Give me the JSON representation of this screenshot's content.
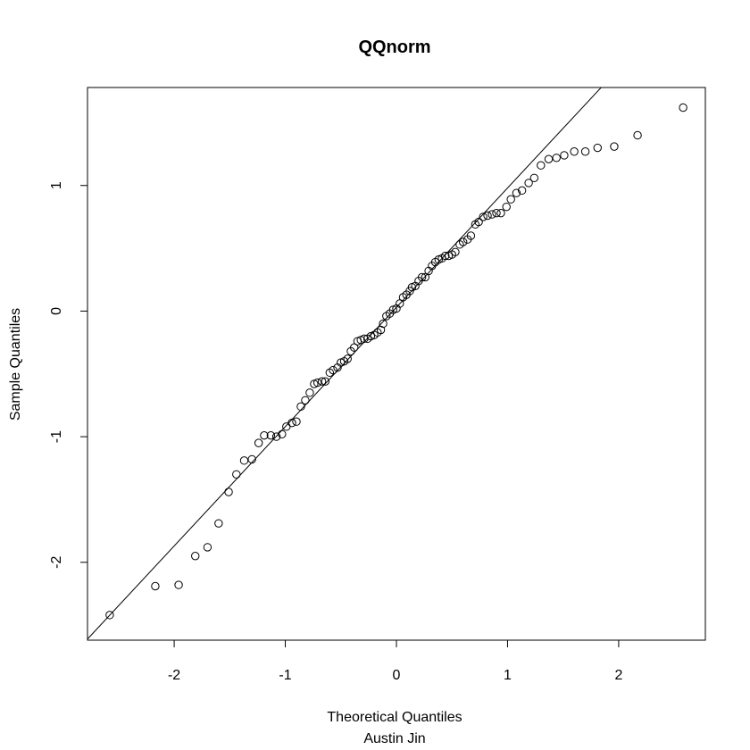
{
  "chart_data": {
    "type": "scatter",
    "title": "QQnorm",
    "xlabel": "Theoretical Quantiles",
    "subtitle": "Austin Jin",
    "ylabel": "Sample Quantiles",
    "xlim": [
      -2.78,
      2.78
    ],
    "ylim": [
      -2.62,
      1.78
    ],
    "x_ticks": [
      -2,
      -1,
      0,
      1,
      2
    ],
    "x_tick_labels": [
      "-2",
      "-1",
      "0",
      "1",
      "2"
    ],
    "y_ticks": [
      -2,
      -1,
      0,
      1
    ],
    "y_tick_labels": [
      "-2",
      "-1",
      "0",
      "1"
    ],
    "grid": false,
    "legend": "none",
    "reference_line": {
      "intercept": 0.03,
      "slope": 0.95
    },
    "points": [
      [
        -2.58,
        -2.42
      ],
      [
        -2.17,
        -2.19
      ],
      [
        -1.96,
        -2.18
      ],
      [
        -1.81,
        -1.95
      ],
      [
        -1.7,
        -1.88
      ],
      [
        -1.6,
        -1.69
      ],
      [
        -1.51,
        -1.44
      ],
      [
        -1.44,
        -1.3
      ],
      [
        -1.37,
        -1.19
      ],
      [
        -1.3,
        -1.18
      ],
      [
        -1.24,
        -1.05
      ],
      [
        -1.19,
        -0.99
      ],
      [
        -1.13,
        -0.99
      ],
      [
        -1.08,
        -1.0
      ],
      [
        -1.03,
        -0.98
      ],
      [
        -0.99,
        -0.92
      ],
      [
        -0.94,
        -0.89
      ],
      [
        -0.9,
        -0.88
      ],
      [
        -0.86,
        -0.76
      ],
      [
        -0.82,
        -0.71
      ],
      [
        -0.78,
        -0.65
      ],
      [
        -0.74,
        -0.58
      ],
      [
        -0.71,
        -0.57
      ],
      [
        -0.67,
        -0.56
      ],
      [
        -0.64,
        -0.56
      ],
      [
        -0.6,
        -0.49
      ],
      [
        -0.57,
        -0.47
      ],
      [
        -0.53,
        -0.45
      ],
      [
        -0.5,
        -0.41
      ],
      [
        -0.47,
        -0.4
      ],
      [
        -0.44,
        -0.38
      ],
      [
        -0.41,
        -0.32
      ],
      [
        -0.38,
        -0.29
      ],
      [
        -0.35,
        -0.24
      ],
      [
        -0.32,
        -0.23
      ],
      [
        -0.29,
        -0.22
      ],
      [
        -0.26,
        -0.22
      ],
      [
        -0.23,
        -0.2
      ],
      [
        -0.2,
        -0.19
      ],
      [
        -0.17,
        -0.17
      ],
      [
        -0.14,
        -0.15
      ],
      [
        -0.12,
        -0.1
      ],
      [
        -0.09,
        -0.04
      ],
      [
        -0.06,
        -0.02
      ],
      [
        -0.03,
        0.01
      ],
      [
        0.0,
        0.02
      ],
      [
        0.03,
        0.06
      ],
      [
        0.06,
        0.11
      ],
      [
        0.09,
        0.13
      ],
      [
        0.12,
        0.16
      ],
      [
        0.14,
        0.19
      ],
      [
        0.17,
        0.2
      ],
      [
        0.2,
        0.24
      ],
      [
        0.23,
        0.27
      ],
      [
        0.26,
        0.27
      ],
      [
        0.29,
        0.32
      ],
      [
        0.32,
        0.36
      ],
      [
        0.35,
        0.39
      ],
      [
        0.38,
        0.41
      ],
      [
        0.41,
        0.42
      ],
      [
        0.44,
        0.44
      ],
      [
        0.47,
        0.44
      ],
      [
        0.5,
        0.45
      ],
      [
        0.53,
        0.47
      ],
      [
        0.57,
        0.53
      ],
      [
        0.6,
        0.55
      ],
      [
        0.64,
        0.57
      ],
      [
        0.67,
        0.6
      ],
      [
        0.71,
        0.69
      ],
      [
        0.74,
        0.71
      ],
      [
        0.78,
        0.75
      ],
      [
        0.82,
        0.76
      ],
      [
        0.86,
        0.77
      ],
      [
        0.9,
        0.78
      ],
      [
        0.94,
        0.78
      ],
      [
        0.99,
        0.83
      ],
      [
        1.03,
        0.89
      ],
      [
        1.08,
        0.94
      ],
      [
        1.13,
        0.96
      ],
      [
        1.19,
        1.02
      ],
      [
        1.24,
        1.06
      ],
      [
        1.3,
        1.16
      ],
      [
        1.37,
        1.21
      ],
      [
        1.44,
        1.22
      ],
      [
        1.51,
        1.24
      ],
      [
        1.6,
        1.27
      ],
      [
        1.7,
        1.27
      ],
      [
        1.81,
        1.3
      ],
      [
        1.96,
        1.31
      ],
      [
        2.17,
        1.4
      ],
      [
        2.58,
        1.62
      ]
    ]
  }
}
